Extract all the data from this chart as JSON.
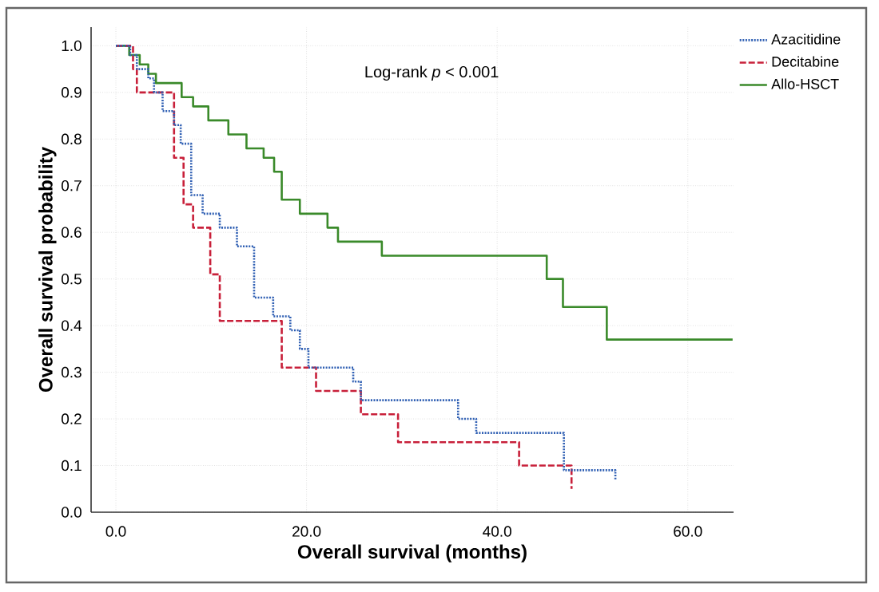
{
  "chart_data": {
    "type": "step",
    "xlabel": "Overall survival (months)",
    "ylabel": "Overall survival probability",
    "annotations": [
      "Log-rank *p* < 0.001"
    ],
    "xlim": [
      -2.6,
      64.8
    ],
    "ylim": [
      0,
      1.04
    ],
    "xticks": [
      {
        "value": 0,
        "label": "0.0"
      },
      {
        "value": 20,
        "label": "20.0"
      },
      {
        "value": 40,
        "label": "40.0"
      },
      {
        "value": 60,
        "label": "60.0"
      }
    ],
    "yticks": [
      {
        "value": 0,
        "label": "0.0"
      },
      {
        "value": 0.1,
        "label": "0.1"
      },
      {
        "value": 0.2,
        "label": "0.2"
      },
      {
        "value": 0.3,
        "label": "0.3"
      },
      {
        "value": 0.4,
        "label": "0.4"
      },
      {
        "value": 0.5,
        "label": "0.5"
      },
      {
        "value": 0.6,
        "label": "0.6"
      },
      {
        "value": 0.7,
        "label": "0.7"
      },
      {
        "value": 0.8,
        "label": "0.8"
      },
      {
        "value": 0.9,
        "label": "0.9"
      },
      {
        "value": 1.0,
        "label": "1.0"
      }
    ],
    "grid": true,
    "legend": "top right",
    "marker": "none",
    "series": [
      {
        "name": "Azacitidine",
        "color": "#2f5fb3",
        "line_style": "dotted",
        "x": [
          0,
          1.5,
          2.2,
          3.4,
          4.0,
          4.9,
          6.1,
          6.8,
          7.9,
          9.1,
          10.9,
          12.7,
          14.5,
          16.5,
          18.3,
          19.3,
          20.2,
          24.9,
          25.7,
          35.9,
          37.8,
          47.0,
          52.4
        ],
        "values": [
          1.0,
          0.98,
          0.95,
          0.93,
          0.9,
          0.86,
          0.83,
          0.79,
          0.68,
          0.64,
          0.61,
          0.57,
          0.46,
          0.42,
          0.39,
          0.35,
          0.31,
          0.28,
          0.24,
          0.2,
          0.17,
          0.09,
          0.07
        ]
      },
      {
        "name": "Decitabine",
        "color": "#c8203a",
        "line_style": "dashed",
        "x": [
          0,
          1.8,
          2.2,
          6.1,
          7.1,
          8.1,
          9.9,
          10.9,
          17.4,
          21.0,
          25.7,
          29.6,
          42.3,
          47.8
        ],
        "values": [
          1.0,
          0.95,
          0.9,
          0.76,
          0.66,
          0.61,
          0.51,
          0.41,
          0.31,
          0.26,
          0.21,
          0.15,
          0.1,
          0.05
        ]
      },
      {
        "name": "Allo-HSCT",
        "color": "#3a8a2a",
        "line_style": "solid",
        "x": [
          0,
          1.4,
          2.5,
          3.4,
          4.2,
          6.9,
          8.1,
          9.7,
          11.8,
          13.7,
          15.5,
          16.6,
          17.4,
          19.3,
          22.2,
          23.3,
          27.9,
          45.2,
          46.9,
          51.5,
          64.7
        ],
        "values": [
          1.0,
          0.98,
          0.96,
          0.94,
          0.92,
          0.89,
          0.87,
          0.84,
          0.81,
          0.78,
          0.76,
          0.73,
          0.67,
          0.64,
          0.61,
          0.58,
          0.55,
          0.5,
          0.44,
          0.37,
          0.37
        ]
      }
    ]
  }
}
